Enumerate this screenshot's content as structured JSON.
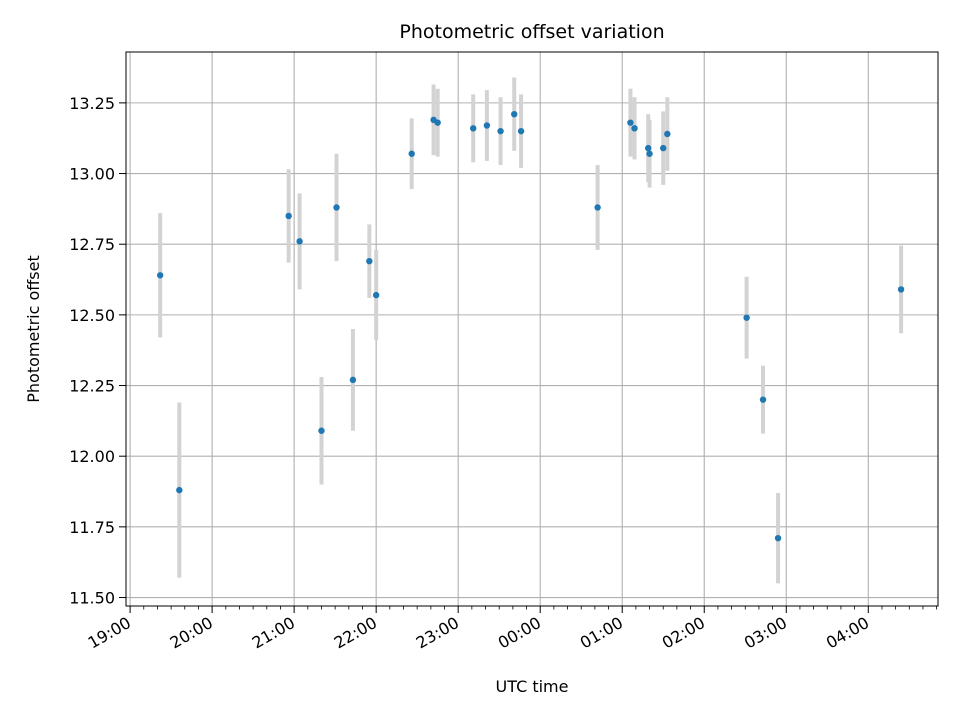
{
  "chart_data": {
    "type": "scatter",
    "title": "Photometric offset variation",
    "xlabel": "UTC time",
    "ylabel": "Photometric offset",
    "grid": true,
    "x_unit": "UTC time (HH:MM)",
    "xlim": [
      "18:57",
      "04:51"
    ],
    "ylim": [
      11.47,
      13.43
    ],
    "x_ticks": [
      "19:00",
      "20:00",
      "21:00",
      "22:00",
      "23:00",
      "00:00",
      "01:00",
      "02:00",
      "03:00",
      "04:00"
    ],
    "y_ticks": [
      "11.50",
      "11.75",
      "12.00",
      "12.25",
      "12.50",
      "12.75",
      "13.00",
      "13.25"
    ],
    "colors": {
      "point": "#1f77b4",
      "errorbar": "#d3d3d3",
      "grid": "#b0b0b0"
    },
    "series": [
      {
        "points": [
          {
            "x": "19:22",
            "y": 12.64,
            "err": 0.22
          },
          {
            "x": "19:36",
            "y": 11.88,
            "err": 0.31
          },
          {
            "x": "20:56",
            "y": 12.85,
            "err": 0.165
          },
          {
            "x": "21:04",
            "y": 12.76,
            "err": 0.17
          },
          {
            "x": "21:20",
            "y": 12.09,
            "err": 0.19
          },
          {
            "x": "21:31",
            "y": 12.88,
            "err": 0.19
          },
          {
            "x": "21:43",
            "y": 12.27,
            "err": 0.18
          },
          {
            "x": "21:55",
            "y": 12.69,
            "err": 0.13
          },
          {
            "x": "22:00",
            "y": 12.57,
            "err": 0.16
          },
          {
            "x": "22:26",
            "y": 13.07,
            "err": 0.125
          },
          {
            "x": "22:42",
            "y": 13.19,
            "err": 0.125
          },
          {
            "x": "22:45",
            "y": 13.18,
            "err": 0.12
          },
          {
            "x": "23:11",
            "y": 13.16,
            "err": 0.12
          },
          {
            "x": "23:21",
            "y": 13.17,
            "err": 0.125
          },
          {
            "x": "23:31",
            "y": 13.15,
            "err": 0.12
          },
          {
            "x": "23:41",
            "y": 13.21,
            "err": 0.13
          },
          {
            "x": "23:46",
            "y": 13.15,
            "err": 0.13
          },
          {
            "x": "00:42",
            "y": 12.88,
            "err": 0.15
          },
          {
            "x": "01:06",
            "y": 13.18,
            "err": 0.12
          },
          {
            "x": "01:09",
            "y": 13.16,
            "err": 0.11
          },
          {
            "x": "01:19",
            "y": 13.09,
            "err": 0.12
          },
          {
            "x": "01:20",
            "y": 13.07,
            "err": 0.12
          },
          {
            "x": "01:30",
            "y": 13.09,
            "err": 0.13
          },
          {
            "x": "01:33",
            "y": 13.14,
            "err": 0.13
          },
          {
            "x": "02:31",
            "y": 12.49,
            "err": 0.145
          },
          {
            "x": "02:43",
            "y": 12.2,
            "err": 0.12
          },
          {
            "x": "02:54",
            "y": 11.71,
            "err": 0.16
          },
          {
            "x": "04:24",
            "y": 12.59,
            "err": 0.155
          }
        ]
      }
    ]
  }
}
